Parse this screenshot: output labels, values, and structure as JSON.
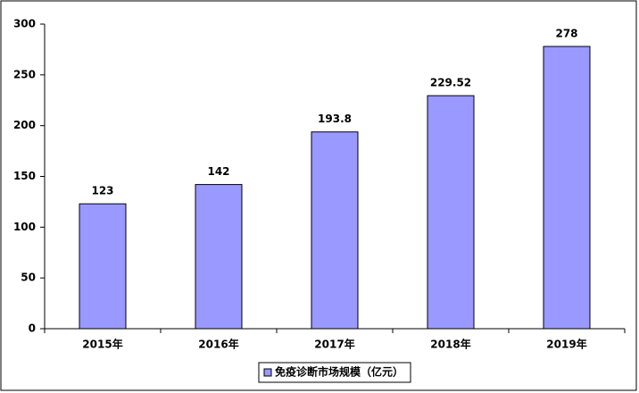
{
  "chart_data": {
    "type": "bar",
    "categories": [
      "2015年",
      "2016年",
      "2017年",
      "2018年",
      "2019年"
    ],
    "series": [
      {
        "name": "免疫诊断市场规模（亿元）",
        "color": "#9999ff",
        "values": [
          123,
          142,
          193.8,
          229.52,
          278
        ]
      }
    ],
    "ylim": [
      0,
      300
    ],
    "yticks": [
      0,
      50,
      100,
      150,
      200,
      250,
      300
    ],
    "grid": false,
    "legend": "bottom"
  }
}
